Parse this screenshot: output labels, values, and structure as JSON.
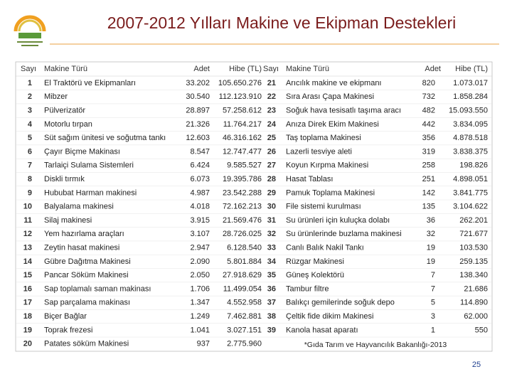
{
  "header": {
    "title": "2007-2012 Yılları Makine ve Ekipman Destekleri"
  },
  "table": {
    "columns": [
      "Sayı",
      "Makine Türü",
      "Adet",
      "Hibe (TL)",
      "Sayı",
      "Makine Türü",
      "Adet",
      "Hibe (TL)"
    ],
    "left_rows": [
      [
        "1",
        "El Traktörü ve Ekipmanları",
        "33.202",
        "105.650.276"
      ],
      [
        "2",
        "Mibzer",
        "30.540",
        "112.123.910"
      ],
      [
        "3",
        "Pülverizatör",
        "28.897",
        "57.258.612"
      ],
      [
        "4",
        "Motorlu tırpan",
        "21.326",
        "11.764.217"
      ],
      [
        "5",
        "Süt sağım ünitesi ve soğutma tankı",
        "12.603",
        "46.316.162"
      ],
      [
        "6",
        "Çayır Biçme Makinası",
        "8.547",
        "12.747.477"
      ],
      [
        "7",
        "Tarlaiçi Sulama Sistemleri",
        "6.424",
        "9.585.527"
      ],
      [
        "8",
        "Diskli tırmık",
        "6.073",
        "19.395.786"
      ],
      [
        "9",
        "Hububat Harman makinesi",
        "4.987",
        "23.542.288"
      ],
      [
        "10",
        "Balyalama makinesi",
        "4.018",
        "72.162.213"
      ],
      [
        "11",
        "Silaj makinesi",
        "3.915",
        "21.569.476"
      ],
      [
        "12",
        "Yem hazırlama araçları",
        "3.107",
        "28.726.025"
      ],
      [
        "13",
        "Zeytin hasat makinesi",
        "2.947",
        "6.128.540"
      ],
      [
        "14",
        "Gübre Dağıtma Makinesi",
        "2.090",
        "5.801.884"
      ],
      [
        "15",
        "Pancar Söküm Makinesi",
        "2.050",
        "27.918.629"
      ],
      [
        "16",
        "Sap toplamalı saman makinası",
        "1.706",
        "11.499.054"
      ],
      [
        "17",
        "Sap parçalama makinası",
        "1.347",
        "4.552.958"
      ],
      [
        "18",
        "Biçer Bağlar",
        "1.249",
        "7.462.881"
      ],
      [
        "19",
        "Toprak frezesi",
        "1.041",
        "3.027.151"
      ],
      [
        "20",
        "Patates söküm Makinesi",
        "937",
        "2.775.960"
      ]
    ],
    "right_rows": [
      [
        "21",
        "Arıcılık makine ve ekipmanı",
        "820",
        "1.073.017"
      ],
      [
        "22",
        "Sıra Arası Çapa Makinesi",
        "732",
        "1.858.284"
      ],
      [
        "23",
        "Soğuk hava tesisatlı taşıma aracı",
        "482",
        "15.093.550"
      ],
      [
        "24",
        "Anıza Direk Ekim Makinesi",
        "442",
        "3.834.095"
      ],
      [
        "25",
        "Taş toplama Makinesi",
        "356",
        "4.878.518"
      ],
      [
        "26",
        "Lazerli tesviye aleti",
        "319",
        "3.838.375"
      ],
      [
        "27",
        "Koyun Kırpma Makinesi",
        "258",
        "198.826"
      ],
      [
        "28",
        "Hasat Tablası",
        "251",
        "4.898.051"
      ],
      [
        "29",
        "Pamuk Toplama Makinesi",
        "142",
        "3.841.775"
      ],
      [
        "30",
        "File sistemi kurulması",
        "135",
        "3.104.622"
      ],
      [
        "31",
        "Su ürünleri için kuluçka dolabı",
        "36",
        "262.201"
      ],
      [
        "32",
        "Su ürünlerinde buzlama makinesi",
        "32",
        "721.677"
      ],
      [
        "33",
        "Canlı Balık Nakil Tankı",
        "19",
        "103.530"
      ],
      [
        "34",
        "Rüzgar Makinesi",
        "19",
        "259.135"
      ],
      [
        "35",
        "Güneş Kolektörü",
        "7",
        "138.340"
      ],
      [
        "36",
        "Tambur filtre",
        "7",
        "21.686"
      ],
      [
        "37",
        "Balıkçı gemilerinde soğuk depo",
        "5",
        "114.890"
      ],
      [
        "38",
        "Çeltik fide dikim Makinesi",
        "3",
        "62.000"
      ],
      [
        "39",
        "Kanola hasat aparatı",
        "1",
        "550"
      ]
    ]
  },
  "footnote": "*Gıda Tarım ve Hayvancılık Bakanlığı-2013",
  "page_number": "25"
}
